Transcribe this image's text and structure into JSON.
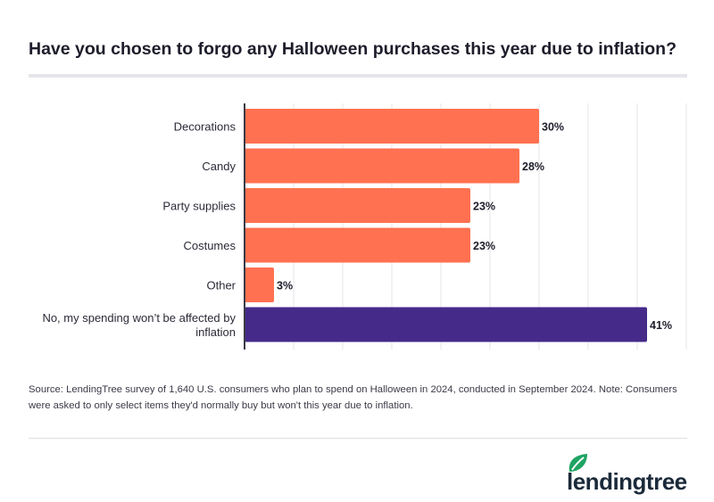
{
  "chart_data": {
    "type": "bar",
    "orientation": "horizontal",
    "title": "Have you chosen to forgo any Halloween purchases this year due to inflation?",
    "categories": [
      "Decorations",
      "Candy",
      "Party supplies",
      "Costumes",
      "Other",
      "No, my spending won’t be affected by inflation"
    ],
    "category_lines": [
      [
        "Decorations"
      ],
      [
        "Candy"
      ],
      [
        "Party supplies"
      ],
      [
        "Costumes"
      ],
      [
        "Other"
      ],
      [
        "No, my spending won’t be affected by",
        "inflation"
      ]
    ],
    "values": [
      30,
      28,
      23,
      23,
      3,
      41
    ],
    "value_labels": [
      "30%",
      "28%",
      "23%",
      "23%",
      "3%",
      "41%"
    ],
    "colors": [
      "#ff7150",
      "#ff7150",
      "#ff7150",
      "#ff7150",
      "#ff7150",
      "#452a8a"
    ],
    "xlim": [
      0,
      45
    ],
    "grid": true,
    "grid_step": 5,
    "unit": "%"
  },
  "source": "Source: LendingTree survey of 1,640 U.S. consumers who plan to spend on Halloween in 2024, conducted in September 2024. Note: Consumers were asked to only select items they'd normally buy but won't this year due to inflation.",
  "logo": {
    "text": "lendingtree",
    "leaf_color": "#1fa463"
  }
}
